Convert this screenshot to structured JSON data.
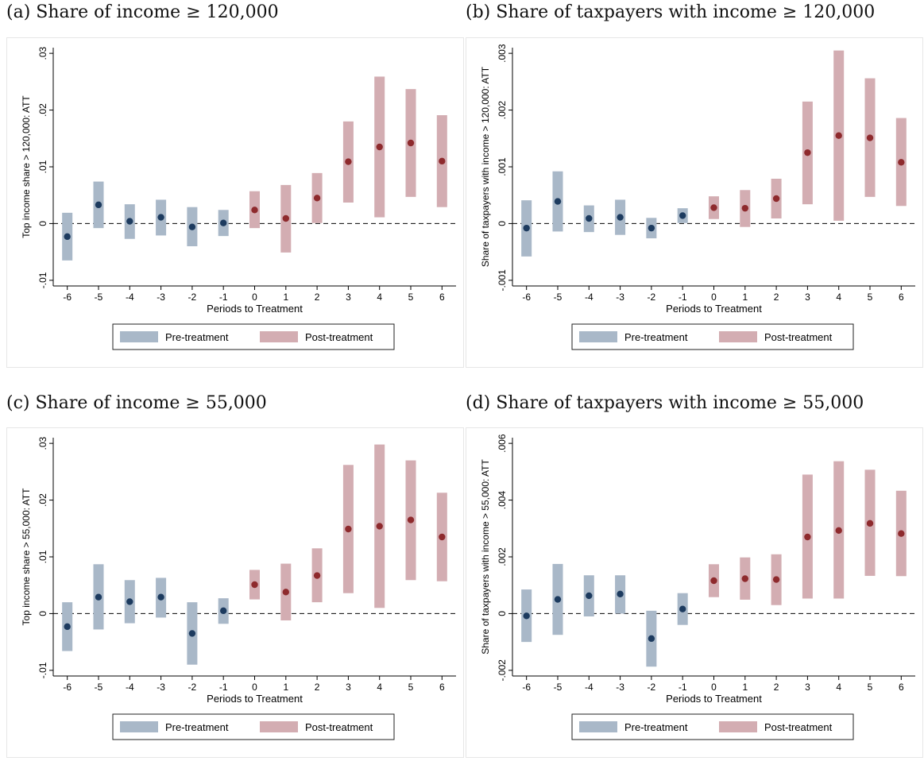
{
  "titles": {
    "a": "(a) Share of income ≥ 120,000",
    "b": "(b) Share of taxpayers with income ≥ 120,000",
    "c": "(c) Share of income ≥ 55,000",
    "d": "(d) Share of taxpayers with income ≥ 55,000"
  },
  "colors": {
    "pre_bar": "#a9b8c8",
    "post_bar": "#d3adb2",
    "pre_point": "#1d3b5f",
    "post_point": "#8e2a2d"
  },
  "chart_data": [
    {
      "type": "scatter",
      "title": "(a) Share of income ≥ 120,000",
      "xlabel": "Periods to Treatment",
      "ylabel": "Top income share > 120,000: ATT",
      "x": [
        -6,
        -5,
        -4,
        -3,
        -2,
        -1,
        0,
        1,
        2,
        3,
        4,
        5,
        6
      ],
      "ylim": [
        -0.011,
        0.031
      ],
      "yticks": [
        -0.01,
        0,
        0.01,
        0.02,
        0.03
      ],
      "ytick_labels": [
        "-.01",
        "0",
        ".01",
        ".02",
        ".03"
      ],
      "legend": [
        "Pre-treatment",
        "Post-treatment"
      ],
      "legend_position": "bottom",
      "series": [
        {
          "name": "Pre-treatment",
          "x": [
            -6,
            -5,
            -4,
            -3,
            -2,
            -1
          ],
          "estimate": [
            -0.0023,
            0.0033,
            0.0004,
            0.0011,
            -0.0006,
            0.0001
          ],
          "ci_low": [
            -0.0065,
            -0.0008,
            -0.0027,
            -0.0021,
            -0.004,
            -0.0022
          ],
          "ci_high": [
            0.0019,
            0.0074,
            0.0034,
            0.0042,
            0.0029,
            0.0024
          ]
        },
        {
          "name": "Post-treatment",
          "x": [
            0,
            1,
            2,
            3,
            4,
            5,
            6
          ],
          "estimate": [
            0.0024,
            0.0009,
            0.0045,
            0.0109,
            0.0135,
            0.0142,
            0.011
          ],
          "ci_low": [
            -0.0008,
            -0.0051,
            0.0001,
            0.0037,
            0.0011,
            0.0047,
            0.0029
          ],
          "ci_high": [
            0.0057,
            0.0068,
            0.0089,
            0.018,
            0.0259,
            0.0237,
            0.0191
          ]
        }
      ]
    },
    {
      "type": "scatter",
      "title": "(b) Share of taxpayers with income ≥ 120,000",
      "xlabel": "Periods to Treatment",
      "ylabel": "Share of taxpayers with income > 120,000: ATT",
      "x": [
        -6,
        -5,
        -4,
        -3,
        -2,
        -1,
        0,
        1,
        2,
        3,
        4,
        5,
        6
      ],
      "ylim": [
        -0.0011,
        0.0031
      ],
      "yticks": [
        -0.001,
        0,
        0.001,
        0.002,
        0.003
      ],
      "ytick_labels": [
        "-.001",
        "0",
        ".001",
        ".002",
        ".003"
      ],
      "legend": [
        "Pre-treatment",
        "Post-treatment"
      ],
      "legend_position": "bottom",
      "series": [
        {
          "name": "Pre-treatment",
          "x": [
            -6,
            -5,
            -4,
            -3,
            -2,
            -1
          ],
          "estimate": [
            -8e-05,
            0.00039,
            9e-05,
            0.00011,
            -8e-05,
            0.00014
          ],
          "ci_low": [
            -0.00058,
            -0.00014,
            -0.00015,
            -0.0002,
            -0.00026,
            1e-05
          ],
          "ci_high": [
            0.00041,
            0.00092,
            0.00032,
            0.00042,
            0.0001,
            0.00027
          ]
        },
        {
          "name": "Post-treatment",
          "x": [
            0,
            1,
            2,
            3,
            4,
            5,
            6
          ],
          "estimate": [
            0.00028,
            0.00027,
            0.00044,
            0.00125,
            0.00155,
            0.00151,
            0.00108
          ],
          "ci_low": [
            8e-05,
            -6e-05,
            9e-05,
            0.00034,
            5e-05,
            0.00047,
            0.00031
          ],
          "ci_high": [
            0.00048,
            0.00059,
            0.00079,
            0.00215,
            0.00305,
            0.00256,
            0.00186
          ]
        }
      ]
    },
    {
      "type": "scatter",
      "title": "(c) Share of income ≥ 55,000",
      "xlabel": "Periods to Treatment",
      "ylabel": "Top income share > 55,000: ATT",
      "x": [
        -6,
        -5,
        -4,
        -3,
        -2,
        -1,
        0,
        1,
        2,
        3,
        4,
        5,
        6
      ],
      "ylim": [
        -0.011,
        0.031
      ],
      "yticks": [
        -0.01,
        0,
        0.01,
        0.02,
        0.03
      ],
      "ytick_labels": [
        "-.01",
        "0",
        ".01",
        ".02",
        ".03"
      ],
      "legend": [
        "Pre-treatment",
        "Post-treatment"
      ],
      "legend_position": "bottom",
      "series": [
        {
          "name": "Pre-treatment",
          "x": [
            -6,
            -5,
            -4,
            -3,
            -2,
            -1
          ],
          "estimate": [
            -0.0023,
            0.0029,
            0.0021,
            0.0029,
            -0.0035,
            0.0005
          ],
          "ci_low": [
            -0.0066,
            -0.0028,
            -0.0017,
            -0.0007,
            -0.009,
            -0.0018
          ],
          "ci_high": [
            0.002,
            0.0087,
            0.0059,
            0.0063,
            0.002,
            0.0027
          ]
        },
        {
          "name": "Post-treatment",
          "x": [
            0,
            1,
            2,
            3,
            4,
            5,
            6
          ],
          "estimate": [
            0.0051,
            0.0038,
            0.0067,
            0.0149,
            0.0154,
            0.0165,
            0.0135
          ],
          "ci_low": [
            0.0025,
            -0.0012,
            0.002,
            0.0036,
            0.001,
            0.0059,
            0.0057
          ],
          "ci_high": [
            0.0077,
            0.0088,
            0.0115,
            0.0262,
            0.0298,
            0.027,
            0.0213
          ]
        }
      ]
    },
    {
      "type": "scatter",
      "title": "(d) Share of taxpayers with income ≥ 55,000",
      "xlabel": "Periods to Treatment",
      "ylabel": "Share of taxpayers with income > 55,000: ATT",
      "x": [
        -6,
        -5,
        -4,
        -3,
        -2,
        -1,
        0,
        1,
        2,
        3,
        4,
        5,
        6
      ],
      "ylim": [
        -0.0022,
        0.0062
      ],
      "yticks": [
        -0.002,
        0,
        0.002,
        0.004,
        0.006
      ],
      "ytick_labels": [
        "-.002",
        "0",
        ".002",
        ".004",
        ".006"
      ],
      "legend": [
        "Pre-treatment",
        "Post-treatment"
      ],
      "legend_position": "bottom",
      "series": [
        {
          "name": "Pre-treatment",
          "x": [
            -6,
            -5,
            -4,
            -3,
            -2,
            -1
          ],
          "estimate": [
            -8e-05,
            0.0005,
            0.00063,
            0.00069,
            -0.00088,
            0.00016
          ],
          "ci_low": [
            -0.001,
            -0.00075,
            -0.0001,
            0.0,
            -0.00187,
            -0.0004
          ],
          "ci_high": [
            0.00085,
            0.00175,
            0.00135,
            0.00135,
            0.0001,
            0.00072
          ]
        },
        {
          "name": "Post-treatment",
          "x": [
            0,
            1,
            2,
            3,
            4,
            5,
            6
          ],
          "estimate": [
            0.00116,
            0.00123,
            0.0012,
            0.0027,
            0.00293,
            0.00318,
            0.00282
          ],
          "ci_low": [
            0.00058,
            0.00049,
            0.0003,
            0.00053,
            0.00053,
            0.00133,
            0.00132
          ],
          "ci_high": [
            0.00174,
            0.00198,
            0.00209,
            0.0049,
            0.00537,
            0.00507,
            0.00433
          ]
        }
      ]
    }
  ]
}
